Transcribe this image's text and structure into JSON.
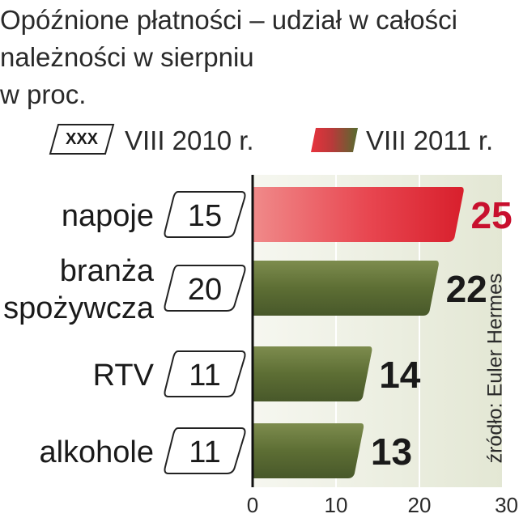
{
  "title_lines": [
    "Opóźnione płatności – udział w całości",
    "należności w sierpniu",
    "w proc."
  ],
  "legend": {
    "box_label": "XXX",
    "prev_label": "VIII 2010 r.",
    "curr_label": "VIII 2011 r."
  },
  "source": "źródło: Euler Hermes",
  "colors": {
    "highlight_bar": "#e0303a",
    "olive_bar": "#556b2f",
    "highlight_value": "#c8102e",
    "background_band": "#e9ecde"
  },
  "chart_data": {
    "type": "bar",
    "orientation": "horizontal",
    "categories": [
      "napoje",
      "branża spożywcza",
      "RTV",
      "alkohole"
    ],
    "category_lines": [
      [
        "napoje"
      ],
      [
        "branża",
        "spożywcza"
      ],
      [
        "RTV"
      ],
      [
        "alkohole"
      ]
    ],
    "series": [
      {
        "name": "VIII 2010 r.",
        "values": [
          15,
          20,
          11,
          11
        ]
      },
      {
        "name": "VIII 2011 r.",
        "values": [
          25,
          22,
          14,
          13
        ]
      }
    ],
    "highlight_index": 0,
    "x_ticks": [
      0,
      10,
      20,
      30
    ],
    "xlim": [
      0,
      30
    ],
    "grid": true
  }
}
